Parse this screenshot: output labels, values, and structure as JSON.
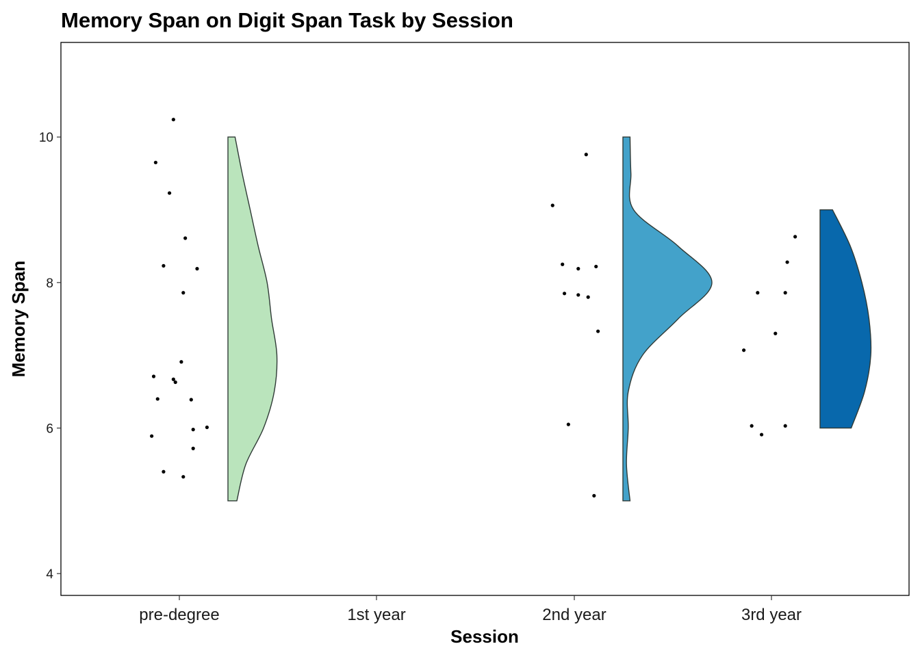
{
  "chart_data": {
    "type": "raincloud",
    "title": "Memory Span on Digit Span Task by Session",
    "xlabel": "Session",
    "ylabel": "Memory Span",
    "categories": [
      "pre-degree",
      "1st year",
      "2nd year",
      "3rd year"
    ],
    "ylim": [
      3.7,
      11.3
    ],
    "yticks": [
      4,
      6,
      8,
      10
    ],
    "grid": false,
    "legend": "none",
    "series": [
      {
        "category": "pre-degree",
        "color": "#bae4bc",
        "points": [
          {
            "x": -0.03,
            "y": 10.24
          },
          {
            "x": -0.12,
            "y": 9.65
          },
          {
            "x": -0.05,
            "y": 9.23
          },
          {
            "x": 0.03,
            "y": 8.61
          },
          {
            "x": -0.08,
            "y": 8.23
          },
          {
            "x": 0.09,
            "y": 8.19
          },
          {
            "x": 0.02,
            "y": 7.86
          },
          {
            "x": 0.01,
            "y": 6.91
          },
          {
            "x": -0.13,
            "y": 6.71
          },
          {
            "x": -0.03,
            "y": 6.67
          },
          {
            "x": -0.02,
            "y": 6.63
          },
          {
            "x": -0.11,
            "y": 6.4
          },
          {
            "x": 0.06,
            "y": 6.39
          },
          {
            "x": 0.14,
            "y": 6.01
          },
          {
            "x": 0.07,
            "y": 5.98
          },
          {
            "x": -0.14,
            "y": 5.89
          },
          {
            "x": 0.07,
            "y": 5.72
          },
          {
            "x": -0.08,
            "y": 5.4
          },
          {
            "x": 0.02,
            "y": 5.33
          }
        ],
        "density": [
          {
            "y": 5.0,
            "d": 0.1
          },
          {
            "y": 5.5,
            "d": 0.2
          },
          {
            "y": 6.0,
            "d": 0.4
          },
          {
            "y": 6.5,
            "d": 0.52
          },
          {
            "y": 7.0,
            "d": 0.55
          },
          {
            "y": 7.5,
            "d": 0.49
          },
          {
            "y": 8.0,
            "d": 0.44
          },
          {
            "y": 8.5,
            "d": 0.34
          },
          {
            "y": 9.0,
            "d": 0.25
          },
          {
            "y": 9.5,
            "d": 0.16
          },
          {
            "y": 10.0,
            "d": 0.08
          }
        ]
      },
      {
        "category": "1st year",
        "color": "#7bccc4",
        "points": [],
        "density": []
      },
      {
        "category": "2nd year",
        "color": "#43a2ca",
        "points": [
          {
            "x": 0.06,
            "y": 9.76
          },
          {
            "x": -0.11,
            "y": 9.06
          },
          {
            "x": -0.06,
            "y": 8.25
          },
          {
            "x": 0.02,
            "y": 8.19
          },
          {
            "x": 0.11,
            "y": 8.22
          },
          {
            "x": -0.05,
            "y": 7.85
          },
          {
            "x": 0.02,
            "y": 7.83
          },
          {
            "x": 0.07,
            "y": 7.8
          },
          {
            "x": 0.12,
            "y": 7.33
          },
          {
            "x": -0.03,
            "y": 6.05
          },
          {
            "x": 0.1,
            "y": 5.07
          }
        ],
        "density": [
          {
            "y": 5.0,
            "d": 0.08
          },
          {
            "y": 5.5,
            "d": 0.04
          },
          {
            "y": 6.0,
            "d": 0.06
          },
          {
            "y": 6.5,
            "d": 0.06
          },
          {
            "y": 7.0,
            "d": 0.22
          },
          {
            "y": 7.5,
            "d": 0.62
          },
          {
            "y": 8.0,
            "d": 1.0
          },
          {
            "y": 8.5,
            "d": 0.62
          },
          {
            "y": 9.0,
            "d": 0.12
          },
          {
            "y": 9.5,
            "d": 0.09
          },
          {
            "y": 10.0,
            "d": 0.08
          }
        ]
      },
      {
        "category": "3rd year",
        "color": "#0868ac",
        "points": [
          {
            "x": 0.12,
            "y": 8.63
          },
          {
            "x": 0.08,
            "y": 8.28
          },
          {
            "x": -0.07,
            "y": 7.86
          },
          {
            "x": 0.07,
            "y": 7.86
          },
          {
            "x": 0.02,
            "y": 7.3
          },
          {
            "x": -0.14,
            "y": 7.07
          },
          {
            "x": -0.1,
            "y": 6.03
          },
          {
            "x": -0.05,
            "y": 5.91
          },
          {
            "x": 0.07,
            "y": 6.03
          }
        ],
        "density": [
          {
            "y": 6.0,
            "d": 0.35
          },
          {
            "y": 6.5,
            "d": 0.5
          },
          {
            "y": 7.0,
            "d": 0.57
          },
          {
            "y": 7.5,
            "d": 0.55
          },
          {
            "y": 8.0,
            "d": 0.47
          },
          {
            "y": 8.5,
            "d": 0.34
          },
          {
            "y": 9.0,
            "d": 0.14
          }
        ]
      }
    ]
  }
}
